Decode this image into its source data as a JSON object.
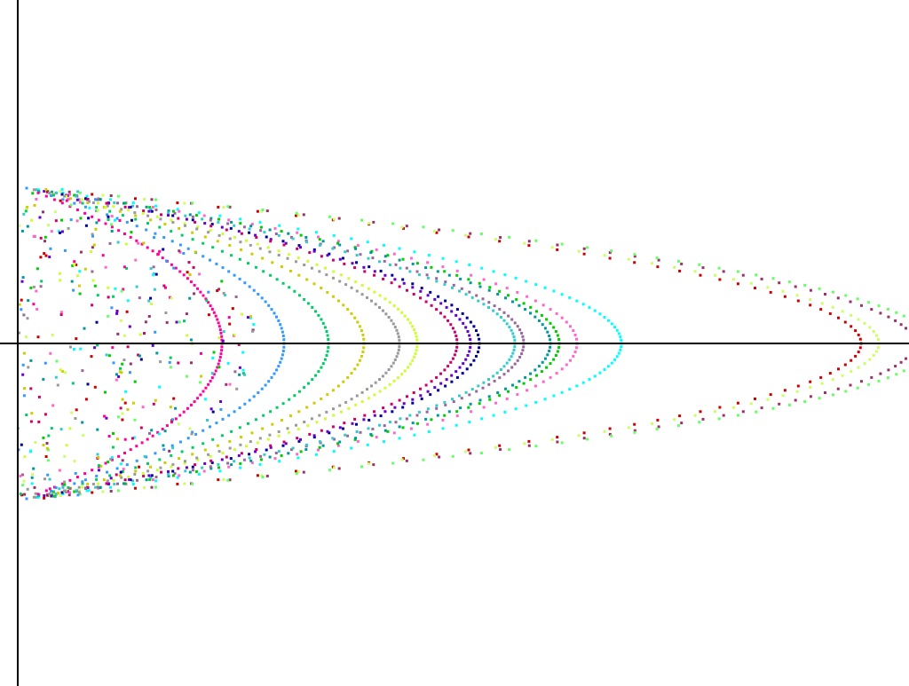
{
  "chart_data": {
    "type": "scatter",
    "title": "",
    "xlabel": "",
    "ylabel": "",
    "grid": false,
    "legend": "none",
    "axes": {
      "xlim": [
        0,
        20
      ],
      "ylim": [
        -7.6,
        7.6
      ],
      "show_axis_lines": true,
      "tick_labels": false
    },
    "series": [
      {
        "color": "#cc0000",
        "vertex": 19.0,
        "values": []
      },
      {
        "color": "#ccff66",
        "vertex": 19.4,
        "values": []
      },
      {
        "color": "#993366",
        "vertex": 20.2,
        "values": []
      },
      {
        "color": "#66ff66",
        "vertex": 20.6,
        "values": []
      },
      {
        "color": "#00ffff",
        "vertex": 13.6,
        "values": []
      },
      {
        "color": "#ff66cc",
        "vertex": 12.6,
        "values": []
      },
      {
        "color": "#00cc00",
        "vertex": 12.2,
        "values": []
      },
      {
        "color": "#009999",
        "vertex": 12.0,
        "values": []
      },
      {
        "color": "#996699",
        "vertex": 11.4,
        "values": []
      },
      {
        "color": "#33cccc",
        "vertex": 11.2,
        "values": []
      },
      {
        "color": "#000099",
        "vertex": 10.4,
        "values": []
      },
      {
        "color": "#6600cc",
        "vertex": 10.2,
        "values": []
      },
      {
        "color": "#cc0066",
        "vertex": 9.9,
        "values": []
      },
      {
        "color": "#ccff33",
        "vertex": 9.0,
        "values": []
      },
      {
        "color": "#999999",
        "vertex": 8.6,
        "values": []
      },
      {
        "color": "#cccc00",
        "vertex": 7.8,
        "values": []
      },
      {
        "color": "#00cc66",
        "vertex": 7.0,
        "values": []
      },
      {
        "color": "#3399ff",
        "vertex": 6.0,
        "values": []
      },
      {
        "color": "#ff0099",
        "vertex": 4.6,
        "values": []
      }
    ]
  }
}
